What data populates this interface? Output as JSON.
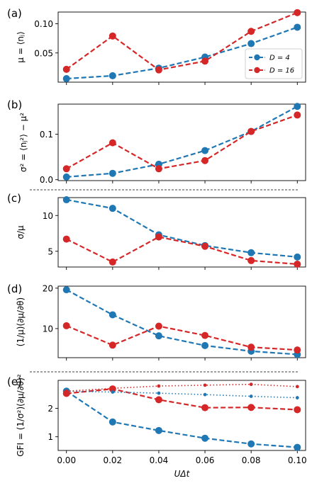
{
  "chart_data": [
    {
      "type": "line",
      "panel_label": "(a)",
      "ylabel": "μ = ⟨nⱼ⟩",
      "x": [
        0.0,
        0.02,
        0.04,
        0.06,
        0.08,
        0.1
      ],
      "ylim": [
        0.0,
        0.12
      ],
      "yticks": [
        0.05,
        0.1
      ],
      "ytick_labels": [
        "0.05",
        "0.10"
      ],
      "legend": "lower-right",
      "series": [
        {
          "name": "D = 4",
          "color": "#1f77b4",
          "style": "dashed",
          "values": [
            0.006,
            0.011,
            0.024,
            0.043,
            0.066,
            0.094
          ]
        },
        {
          "name": "D = 16",
          "color": "#d62728",
          "style": "dashed",
          "values": [
            0.022,
            0.079,
            0.021,
            0.036,
            0.087,
            0.119
          ]
        }
      ]
    },
    {
      "type": "line",
      "panel_label": "(b)",
      "ylabel": "σ² = ⟨nⱼ²⟩ − μ²",
      "x": [
        0.0,
        0.02,
        0.04,
        0.06,
        0.08,
        0.1
      ],
      "ylim": [
        -0.002,
        0.166
      ],
      "yticks": [
        0.0,
        0.1
      ],
      "ytick_labels": [
        "0.0",
        "0.1"
      ],
      "series": [
        {
          "name": "D = 4",
          "color": "#1f77b4",
          "style": "dashed",
          "values": [
            0.006,
            0.014,
            0.034,
            0.064,
            0.106,
            0.161
          ]
        },
        {
          "name": "D = 16",
          "color": "#d62728",
          "style": "dashed",
          "values": [
            0.024,
            0.081,
            0.024,
            0.042,
            0.106,
            0.142
          ]
        }
      ]
    },
    {
      "type": "line",
      "panel_label": "(c)",
      "ylabel": "σ/μ",
      "x": [
        0.0,
        0.02,
        0.04,
        0.06,
        0.08,
        0.1
      ],
      "ylim": [
        2.8,
        12.5
      ],
      "yticks": [
        5,
        10
      ],
      "ytick_labels": [
        "5",
        "10"
      ],
      "series": [
        {
          "name": "D = 4",
          "color": "#1f77b4",
          "style": "dashed",
          "values": [
            12.2,
            11.0,
            7.3,
            5.8,
            4.8,
            4.2
          ]
        },
        {
          "name": "D = 16",
          "color": "#d62728",
          "style": "dashed",
          "values": [
            6.7,
            3.5,
            7.0,
            5.7,
            3.7,
            3.2
          ]
        }
      ]
    },
    {
      "type": "line",
      "panel_label": "(d)",
      "ylabel": "(1/μ)(∂μ/∂θ)",
      "x": [
        0.0,
        0.02,
        0.04,
        0.06,
        0.08,
        0.1
      ],
      "ylim": [
        2.8,
        20.5
      ],
      "yticks": [
        10,
        20
      ],
      "ytick_labels": [
        "10",
        "20"
      ],
      "series": [
        {
          "name": "D = 4",
          "color": "#1f77b4",
          "style": "dashed",
          "values": [
            19.6,
            13.4,
            8.2,
            5.8,
            4.4,
            3.6
          ]
        },
        {
          "name": "D = 16",
          "color": "#d62728",
          "style": "dashed",
          "values": [
            10.7,
            5.9,
            10.6,
            8.3,
            5.4,
            4.7
          ]
        }
      ]
    },
    {
      "type": "line",
      "panel_label": "(e)",
      "ylabel": "GFI = (1/σ²)(∂μ/∂θ)²",
      "xlabel": "UΔt",
      "x": [
        0.0,
        0.02,
        0.04,
        0.06,
        0.08,
        0.1
      ],
      "xticks": [
        0.0,
        0.02,
        0.04,
        0.06,
        0.08,
        0.1
      ],
      "xtick_labels": [
        "0.00",
        "0.02",
        "0.04",
        "0.06",
        "0.08",
        "0.10"
      ],
      "ylim": [
        0.52,
        2.98
      ],
      "yticks": [
        1,
        2
      ],
      "ytick_labels": [
        "1",
        "2"
      ],
      "series": [
        {
          "name": "D = 4",
          "color": "#1f77b4",
          "style": "dashed",
          "values": [
            2.6,
            1.52,
            1.22,
            0.95,
            0.75,
            0.63
          ]
        },
        {
          "name": "D = 16",
          "color": "#d62728",
          "style": "dashed",
          "values": [
            2.52,
            2.68,
            2.3,
            2.02,
            2.03,
            1.95
          ]
        },
        {
          "name": "",
          "color": "#1f77b4",
          "style": "dotted",
          "values": [
            2.6,
            2.57,
            2.53,
            2.48,
            2.42,
            2.37
          ]
        },
        {
          "name": "",
          "color": "#d62728",
          "style": "dotted",
          "values": [
            2.6,
            2.7,
            2.78,
            2.81,
            2.84,
            2.76
          ]
        }
      ]
    }
  ]
}
